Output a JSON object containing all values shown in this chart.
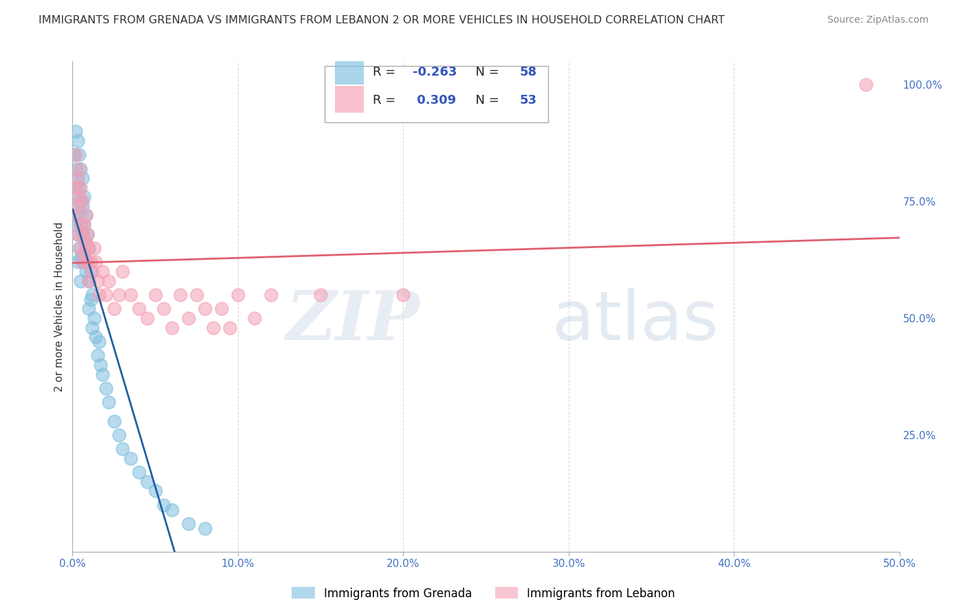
{
  "title": "IMMIGRANTS FROM GRENADA VS IMMIGRANTS FROM LEBANON 2 OR MORE VEHICLES IN HOUSEHOLD CORRELATION CHART",
  "source": "Source: ZipAtlas.com",
  "ylabel_left": "2 or more Vehicles in Household",
  "R_grenada": -0.263,
  "N_grenada": 58,
  "R_lebanon": 0.309,
  "N_lebanon": 53,
  "color_grenada": "#7fbfdf",
  "color_lebanon": "#f4a0b5",
  "line_color_grenada": "#2060a0",
  "line_color_lebanon": "#e06070",
  "xlim": [
    0.0,
    0.5
  ],
  "ylim": [
    0.0,
    1.05
  ],
  "xtick_labels": [
    "0.0%",
    "10.0%",
    "20.0%",
    "30.0%",
    "40.0%",
    "50.0%"
  ],
  "xtick_values": [
    0.0,
    0.1,
    0.2,
    0.3,
    0.4,
    0.5
  ],
  "ytick_right_labels": [
    "25.0%",
    "50.0%",
    "75.0%",
    "100.0%"
  ],
  "ytick_right_values": [
    0.25,
    0.5,
    0.75,
    1.0
  ],
  "legend_x1": "Immigrants from Grenada",
  "legend_x2": "Immigrants from Lebanon",
  "grenada_x": [
    0.001,
    0.001,
    0.002,
    0.002,
    0.002,
    0.002,
    0.003,
    0.003,
    0.003,
    0.003,
    0.003,
    0.004,
    0.004,
    0.004,
    0.004,
    0.005,
    0.005,
    0.005,
    0.005,
    0.005,
    0.006,
    0.006,
    0.006,
    0.006,
    0.007,
    0.007,
    0.007,
    0.008,
    0.008,
    0.008,
    0.009,
    0.009,
    0.01,
    0.01,
    0.01,
    0.011,
    0.011,
    0.012,
    0.012,
    0.013,
    0.014,
    0.015,
    0.016,
    0.017,
    0.018,
    0.02,
    0.022,
    0.025,
    0.028,
    0.03,
    0.035,
    0.04,
    0.045,
    0.05,
    0.055,
    0.06,
    0.07,
    0.08
  ],
  "grenada_y": [
    0.85,
    0.72,
    0.9,
    0.82,
    0.7,
    0.78,
    0.88,
    0.8,
    0.75,
    0.68,
    0.62,
    0.85,
    0.78,
    0.72,
    0.65,
    0.82,
    0.75,
    0.7,
    0.63,
    0.58,
    0.8,
    0.74,
    0.68,
    0.62,
    0.76,
    0.7,
    0.64,
    0.72,
    0.66,
    0.6,
    0.68,
    0.62,
    0.65,
    0.58,
    0.52,
    0.6,
    0.54,
    0.55,
    0.48,
    0.5,
    0.46,
    0.42,
    0.45,
    0.4,
    0.38,
    0.35,
    0.32,
    0.28,
    0.25,
    0.22,
    0.2,
    0.17,
    0.15,
    0.13,
    0.1,
    0.09,
    0.06,
    0.05
  ],
  "lebanon_x": [
    0.001,
    0.002,
    0.002,
    0.003,
    0.003,
    0.003,
    0.004,
    0.004,
    0.005,
    0.005,
    0.005,
    0.006,
    0.006,
    0.006,
    0.007,
    0.007,
    0.008,
    0.008,
    0.009,
    0.009,
    0.01,
    0.01,
    0.011,
    0.012,
    0.013,
    0.014,
    0.015,
    0.016,
    0.018,
    0.02,
    0.022,
    0.025,
    0.028,
    0.03,
    0.035,
    0.04,
    0.045,
    0.05,
    0.055,
    0.06,
    0.065,
    0.07,
    0.075,
    0.08,
    0.085,
    0.09,
    0.095,
    0.1,
    0.11,
    0.12,
    0.15,
    0.2,
    0.48
  ],
  "lebanon_y": [
    0.72,
    0.85,
    0.78,
    0.8,
    0.74,
    0.68,
    0.82,
    0.76,
    0.78,
    0.7,
    0.65,
    0.75,
    0.68,
    0.62,
    0.7,
    0.64,
    0.72,
    0.66,
    0.68,
    0.62,
    0.65,
    0.58,
    0.62,
    0.6,
    0.65,
    0.62,
    0.58,
    0.55,
    0.6,
    0.55,
    0.58,
    0.52,
    0.55,
    0.6,
    0.55,
    0.52,
    0.5,
    0.55,
    0.52,
    0.48,
    0.55,
    0.5,
    0.55,
    0.52,
    0.48,
    0.52,
    0.48,
    0.55,
    0.5,
    0.55,
    0.55,
    0.55,
    1.0
  ],
  "watermark_zip": "ZIP",
  "watermark_atlas": "atlas",
  "background_color": "#ffffff",
  "grid_color": "#cccccc"
}
